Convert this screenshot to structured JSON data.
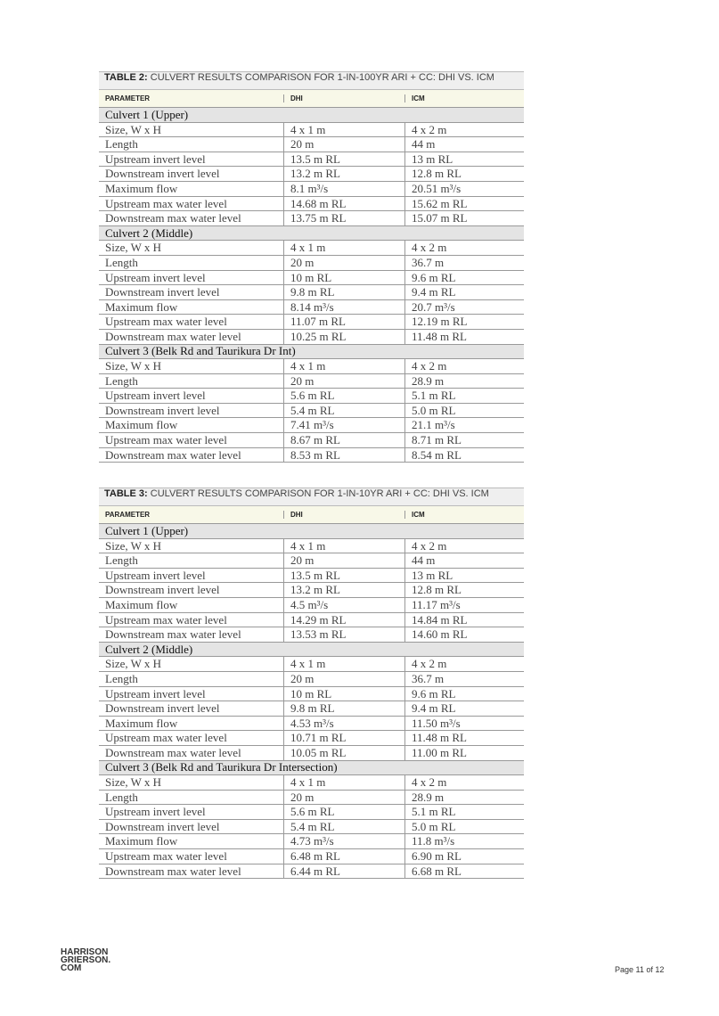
{
  "tables": [
    {
      "label": "TABLE 2:",
      "title": "CULVERT RESULTS COMPARISON FOR 1-IN-100YR ARI + CC: DHI VS. ICM",
      "header": [
        "PARAMETER",
        "DHI",
        "ICM"
      ],
      "groups": [
        {
          "name": "Culvert 1 (Upper)",
          "rows": [
            [
              "Size, W x H",
              "4 x 1 m",
              "4 x 2 m"
            ],
            [
              "Length",
              "20 m",
              "44 m"
            ],
            [
              "Upstream invert level",
              "13.5 m RL",
              "13 m RL"
            ],
            [
              "Downstream invert level",
              "13.2 m RL",
              "12.8 m RL"
            ],
            [
              "Maximum flow",
              "8.1 m³/s",
              "20.51 m³/s"
            ],
            [
              "Upstream max water level",
              "14.68 m RL",
              "15.62 m RL"
            ],
            [
              "Downstream max water level",
              "13.75 m RL",
              "15.07 m RL"
            ]
          ]
        },
        {
          "name": "Culvert 2 (Middle)",
          "rows": [
            [
              "Size, W x H",
              "4 x 1 m",
              "4 x 2 m"
            ],
            [
              "Length",
              "20 m",
              "36.7 m"
            ],
            [
              "Upstream invert level",
              "10 m RL",
              "9.6 m RL"
            ],
            [
              "Downstream invert level",
              "9.8 m RL",
              "9.4 m RL"
            ],
            [
              "Maximum flow",
              "8.14 m³/s",
              "20.7 m³/s"
            ],
            [
              "Upstream max water level",
              "11.07 m RL",
              "12.19 m RL"
            ],
            [
              "Downstream max water level",
              "10.25 m RL",
              "11.48 m RL"
            ]
          ]
        },
        {
          "name": "Culvert 3 (Belk Rd and Taurikura Dr Int)",
          "rows": [
            [
              "Size, W x H",
              "4 x 1 m",
              "4 x 2 m"
            ],
            [
              "Length",
              "20 m",
              "28.9 m"
            ],
            [
              "Upstream invert level",
              "5.6 m RL",
              "5.1 m RL"
            ],
            [
              "Downstream invert level",
              "5.4 m RL",
              "5.0 m RL"
            ],
            [
              "Maximum flow",
              "7.41 m³/s",
              "21.1 m³/s"
            ],
            [
              "Upstream max water level",
              "8.67 m RL",
              "8.71 m RL"
            ],
            [
              "Downstream max water level",
              "8.53 m RL",
              "8.54 m RL"
            ]
          ]
        }
      ]
    },
    {
      "label": "TABLE 3:",
      "title": "CULVERT RESULTS COMPARISON FOR 1-IN-10YR ARI + CC: DHI VS. ICM",
      "header": [
        "PARAMETER",
        "DHI",
        "ICM"
      ],
      "groups": [
        {
          "name": "Culvert 1 (Upper)",
          "rows": [
            [
              "Size, W x H",
              "4 x 1 m",
              "4 x 2 m"
            ],
            [
              "Length",
              "20 m",
              "44 m"
            ],
            [
              "Upstream invert level",
              "13.5 m RL",
              "13 m RL"
            ],
            [
              "Downstream invert level",
              "13.2 m RL",
              "12.8 m RL"
            ],
            [
              "Maximum flow",
              "4.5 m³/s",
              "11.17 m³/s"
            ],
            [
              "Upstream max water level",
              "14.29 m RL",
              "14.84 m RL"
            ],
            [
              "Downstream max water level",
              "13.53 m RL",
              "14.60 m RL"
            ]
          ]
        },
        {
          "name": "Culvert 2 (Middle)",
          "rows": [
            [
              "Size, W x H",
              "4 x 1 m",
              "4 x 2 m"
            ],
            [
              "Length",
              "20 m",
              "36.7 m"
            ],
            [
              "Upstream invert level",
              "10 m RL",
              "9.6 m RL"
            ],
            [
              "Downstream invert level",
              "9.8 m RL",
              "9.4 m RL"
            ],
            [
              "Maximum flow",
              "4.53 m³/s",
              "11.50 m³/s"
            ],
            [
              "Upstream max water level",
              "10.71 m RL",
              "11.48 m RL"
            ],
            [
              "Downstream max water level",
              "10.05 m RL",
              "11.00 m RL"
            ]
          ]
        },
        {
          "name": "Culvert 3 (Belk Rd and Taurikura Dr Intersection)",
          "rows": [
            [
              "Size, W x H",
              "4 x 1 m",
              "4 x 2 m"
            ],
            [
              "Length",
              "20 m",
              "28.9 m"
            ],
            [
              "Upstream invert level",
              "5.6 m RL",
              "5.1 m RL"
            ],
            [
              "Downstream invert level",
              "5.4 m RL",
              "5.0 m RL"
            ],
            [
              "Maximum flow",
              "4.73 m³/s",
              "11.8 m³/s"
            ],
            [
              "Upstream max water level",
              "6.48 m RL",
              "6.90 m RL"
            ],
            [
              "Downstream max water level",
              "6.44 m RL",
              "6.68 m RL"
            ]
          ]
        }
      ]
    }
  ],
  "footer": {
    "logo": [
      "HARRISON",
      "GRIERSON.",
      "COM"
    ],
    "page": "Page 11 of 12"
  }
}
